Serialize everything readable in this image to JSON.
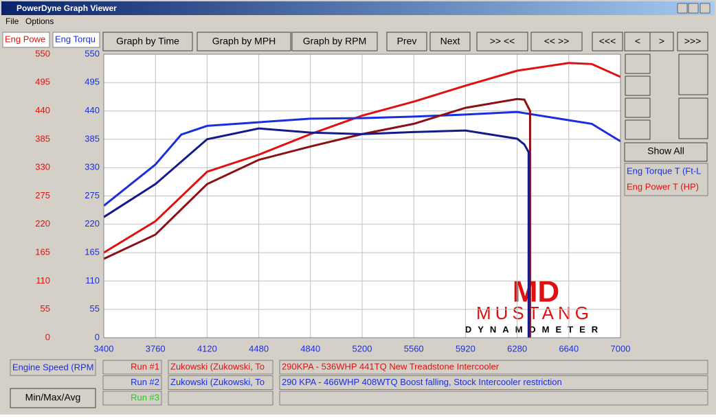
{
  "window": {
    "title": "PowerDyne Graph Viewer",
    "menu": [
      "File",
      "Options"
    ],
    "toolbar": [
      "Graph by Time",
      "Graph by MPH",
      "Graph by RPM",
      "Prev",
      "Next",
      ">> <<",
      "<< >>",
      "<<<",
      "<",
      ">",
      ">>>"
    ],
    "show_all": "Show All",
    "legend": [
      "Eng Torque T (Ft-L",
      "Eng Power T (HP)"
    ],
    "x_channel": "Engine Speed (RPM",
    "min_max_avg": "Min/Max/Avg",
    "runs": [
      {
        "label": "Run #1",
        "customer": "Zukowski (Zukowski, To",
        "description": "290KPA - 536WHP 441TQ New Treadstone Intercooler"
      },
      {
        "label": "Run #2",
        "customer": "Zukowski (Zukowski, To",
        "description": "290 KPA - 466WHP 408WTQ Boost falling, Stock  Intercooler restriction"
      },
      {
        "label": "Run #3"
      }
    ],
    "logo": [
      "MD",
      "MUSTANG",
      "DYNAMOMETER"
    ]
  },
  "chart_data": {
    "type": "line",
    "y_label": "Eng Powe",
    "y2_label": "Eng Torqu",
    "xlim": [
      3400,
      7000
    ],
    "xticks": [
      3400,
      3760,
      4120,
      4480,
      4840,
      5200,
      5560,
      5920,
      6280,
      6640,
      7000
    ],
    "ylim": [
      0,
      550
    ],
    "yticks": [
      0,
      55,
      110,
      165,
      220,
      275,
      330,
      385,
      440,
      495,
      550
    ],
    "y2lim": [
      0,
      550
    ],
    "y2ticks": [
      0,
      55,
      110,
      165,
      220,
      275,
      330,
      385,
      440,
      495,
      550
    ],
    "grid": true,
    "series": [
      {
        "color": "#e01010",
        "x": [
          3400,
          3760,
          4120,
          4480,
          4840,
          5200,
          5560,
          5920,
          6280,
          6640,
          6800,
          7000
        ],
        "values": [
          165,
          226,
          322,
          355,
          395,
          431,
          458,
          489,
          518,
          533,
          531,
          506
        ]
      },
      {
        "color": "#1a2ee0",
        "axis": "y2",
        "x": [
          3400,
          3760,
          3940,
          4120,
          4480,
          4840,
          5200,
          5560,
          5920,
          6280,
          6640,
          6800,
          7000
        ],
        "values": [
          256,
          336,
          394,
          411,
          418,
          425,
          426,
          429,
          433,
          438,
          422,
          415,
          381
        ]
      },
      {
        "color": "#8b0f14",
        "x": [
          3400,
          3760,
          4120,
          4480,
          4840,
          5200,
          5560,
          5920,
          6280,
          6330,
          6370,
          6370,
          6370,
          6370,
          6370
        ],
        "values": [
          153,
          200,
          298,
          345,
          371,
          395,
          415,
          446,
          463,
          462,
          440,
          330,
          220,
          110,
          0
        ]
      },
      {
        "color": "#141a8c",
        "axis": "y2",
        "x": [
          3400,
          3760,
          4120,
          4480,
          4840,
          5200,
          5560,
          5920,
          6280,
          6330,
          6360,
          6360,
          6360,
          6360,
          6360
        ],
        "values": [
          234,
          298,
          385,
          406,
          398,
          395,
          399,
          402,
          386,
          375,
          360,
          270,
          180,
          90,
          0
        ]
      }
    ]
  }
}
